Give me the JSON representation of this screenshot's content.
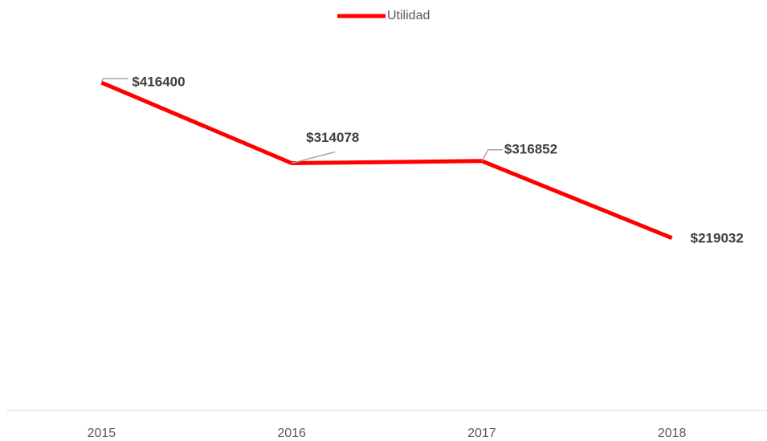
{
  "chart_data": {
    "type": "line",
    "categories": [
      "2015",
      "2016",
      "2017",
      "2018"
    ],
    "series": [
      {
        "name": "Utilidad",
        "color": "#ff0000",
        "values": [
          416400,
          314078,
          316852,
          219032
        ],
        "value_labels": [
          "$416400",
          "$314078",
          "$316852",
          "$219032"
        ]
      }
    ],
    "ylim": [
      0,
      450000
    ],
    "legend": "top"
  }
}
